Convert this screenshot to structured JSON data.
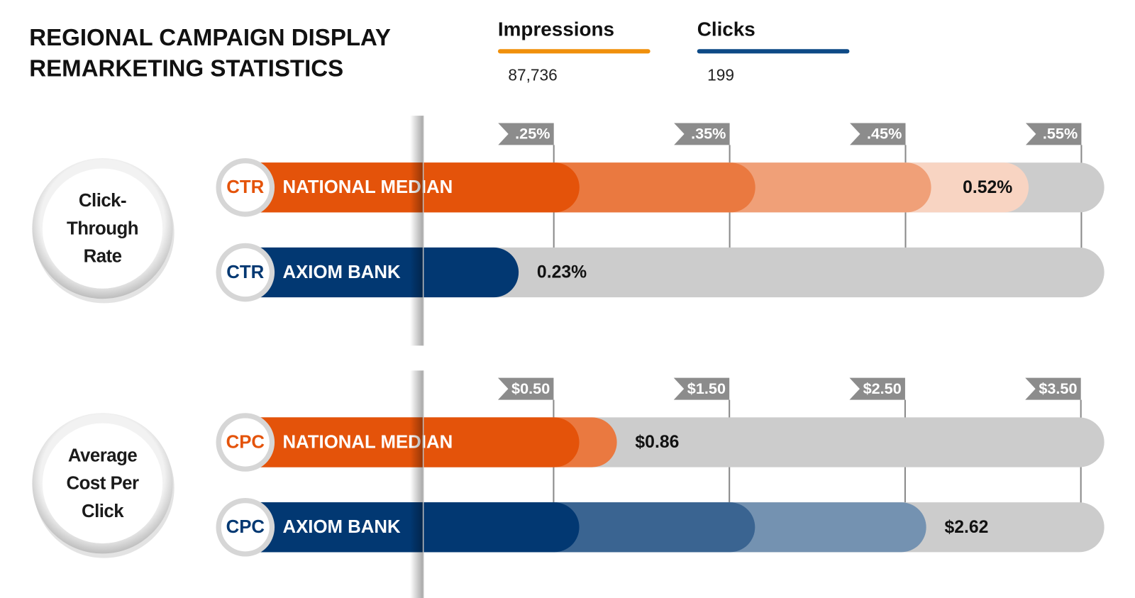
{
  "header": {
    "title": "REGIONAL CAMPAIGN DISPLAY REMARKETING STATISTICS",
    "stats": [
      {
        "label": "Impressions",
        "value": "87,736",
        "color": "#f0900b"
      },
      {
        "label": "Clicks",
        "value": "199",
        "color": "#0d4a86"
      }
    ]
  },
  "chart_data": [
    {
      "type": "bar",
      "orientation": "horizontal",
      "title": "Click-Through Rate",
      "tag": "CTR",
      "categories": [
        "NATIONAL MEDIAN",
        "AXIOM BANK"
      ],
      "values": [
        0.52,
        0.23
      ],
      "value_labels": [
        "0.52%",
        "0.23%"
      ],
      "colors": [
        "#e4530a",
        "#023872"
      ],
      "xlim": [
        0.06,
        0.563
      ],
      "xticks": [
        {
          "value": 0.25,
          "label": ".25%"
        },
        {
          "value": 0.35,
          "label": ".35%"
        },
        {
          "value": 0.45,
          "label": ".45%"
        },
        {
          "value": 0.55,
          "label": ".55%"
        }
      ]
    },
    {
      "type": "bar",
      "orientation": "horizontal",
      "title": "Average Cost Per Click",
      "tag": "CPC",
      "categories": [
        "NATIONAL MEDIAN",
        "AXIOM BANK"
      ],
      "values": [
        0.86,
        2.62
      ],
      "value_labels": [
        "$0.86",
        "$2.62"
      ],
      "colors": [
        "#e4530a",
        "#023872"
      ],
      "xlim": [
        -1.4,
        3.633
      ],
      "xticks": [
        {
          "value": 0.5,
          "label": "$0.50"
        },
        {
          "value": 1.5,
          "label": "$1.50"
        },
        {
          "value": 2.5,
          "label": "$2.50"
        },
        {
          "value": 3.5,
          "label": "$3.50"
        }
      ]
    }
  ]
}
